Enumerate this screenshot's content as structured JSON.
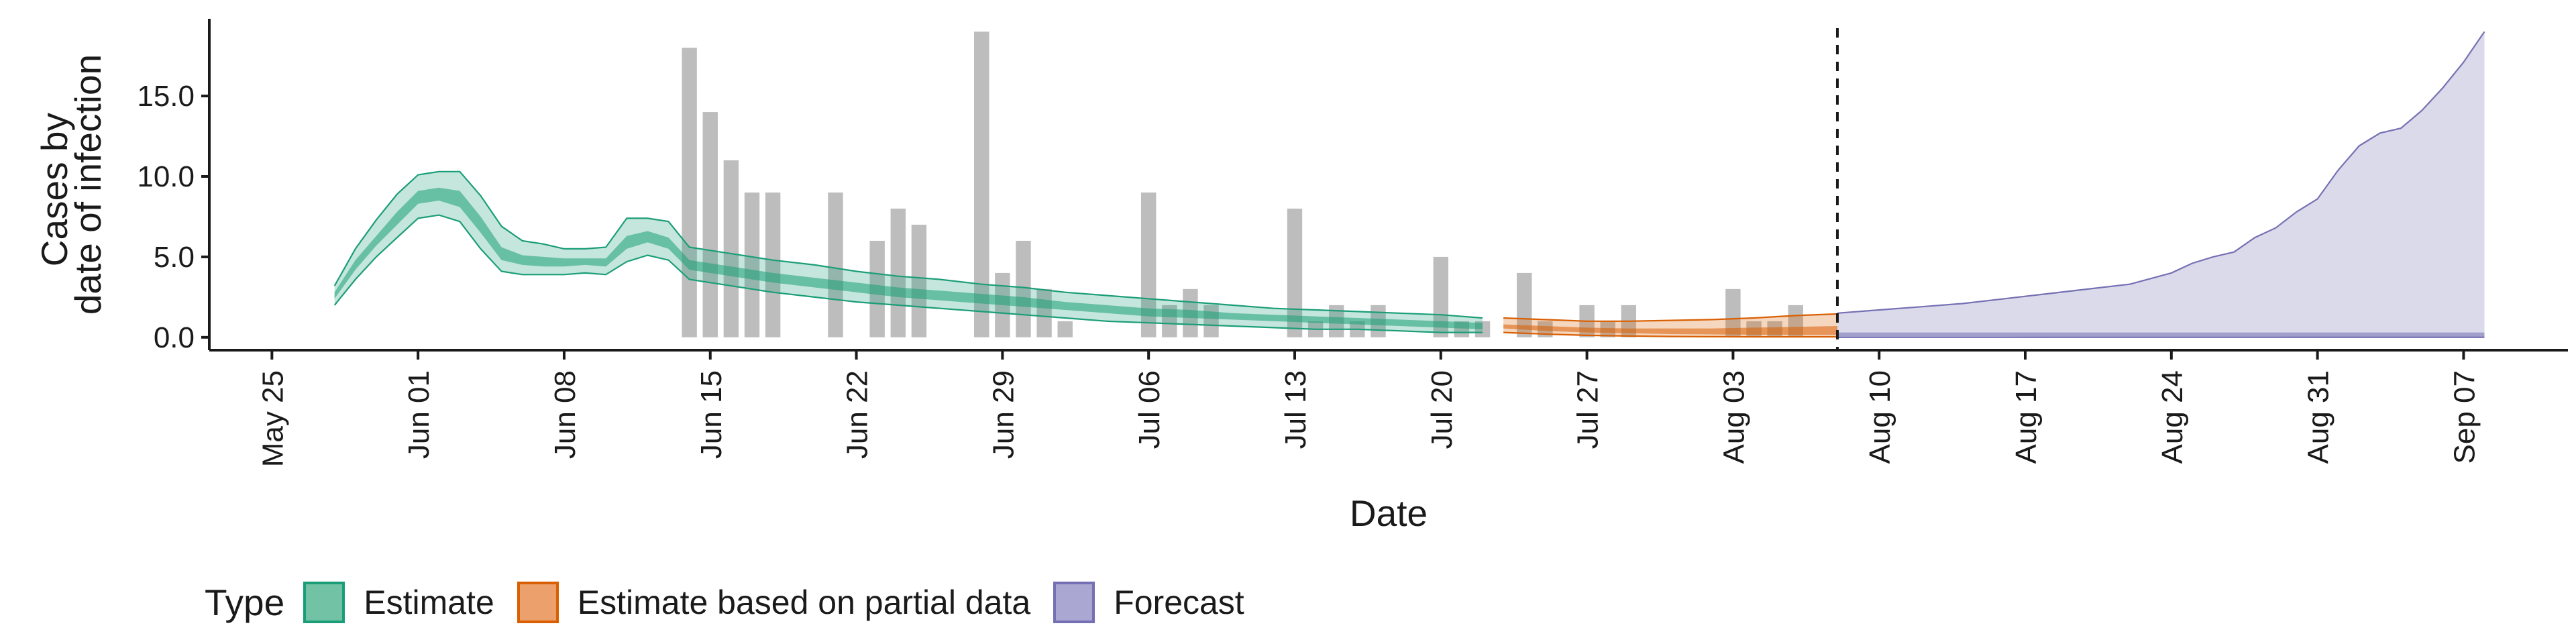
{
  "chart_data": {
    "type": "area",
    "xlabel": "Date",
    "ylabel_lines": [
      "Cases by",
      "date of infection"
    ],
    "ylim": [
      -0.8,
      19.8
    ],
    "yticks": [
      0.0,
      5.0,
      10.0,
      15.0
    ],
    "ytick_labels": [
      "0.0",
      "5.0",
      "10.0",
      "15.0"
    ],
    "xlim": [
      "2020-05-22",
      "2020-09-12"
    ],
    "xticks": [
      "2020-05-25",
      "2020-06-01",
      "2020-06-08",
      "2020-06-15",
      "2020-06-22",
      "2020-06-29",
      "2020-07-06",
      "2020-07-13",
      "2020-07-20",
      "2020-07-27",
      "2020-08-03",
      "2020-08-10",
      "2020-08-17",
      "2020-08-24",
      "2020-08-31",
      "2020-09-07"
    ],
    "xtick_labels": [
      "May 25",
      "Jun 01",
      "Jun 08",
      "Jun 15",
      "Jun 22",
      "Jun 29",
      "Jul 06",
      "Jul 13",
      "Jul 20",
      "Jul 27",
      "Aug 03",
      "Aug 10",
      "Aug 17",
      "Aug 24",
      "Aug 31",
      "Sep 07"
    ],
    "forecast_start": "2020-08-08",
    "legend": {
      "title": "Type",
      "position": "bottom",
      "items": [
        {
          "label": "Estimate",
          "fill": "#72c3a6",
          "stroke": "#1b9e77"
        },
        {
          "label": "Estimate based on partial data",
          "fill": "#eca06b",
          "stroke": "#d95f02"
        },
        {
          "label": "Forecast",
          "fill": "#aaa7d2",
          "stroke": "#7570b3"
        }
      ]
    },
    "colors": {
      "estimate": "#1b9e77",
      "partial": "#d95f02",
      "forecast": "#7570b3",
      "bars": "#bdbdbd",
      "cutoff_line": "#1a1a1a"
    },
    "bars": {
      "x": [
        "2020-06-14",
        "2020-06-15",
        "2020-06-16",
        "2020-06-17",
        "2020-06-18",
        "2020-06-21",
        "2020-06-23",
        "2020-06-24",
        "2020-06-25",
        "2020-06-28",
        "2020-06-29",
        "2020-06-30",
        "2020-07-01",
        "2020-07-02",
        "2020-07-06",
        "2020-07-07",
        "2020-07-08",
        "2020-07-09",
        "2020-07-13",
        "2020-07-14",
        "2020-07-15",
        "2020-07-16",
        "2020-07-17",
        "2020-07-20",
        "2020-07-21",
        "2020-07-22",
        "2020-07-24",
        "2020-07-25",
        "2020-07-27",
        "2020-07-28",
        "2020-07-29",
        "2020-08-03",
        "2020-08-04",
        "2020-08-05",
        "2020-08-06"
      ],
      "values": [
        18,
        14,
        11,
        9,
        9,
        9,
        6,
        8,
        7,
        19,
        4,
        6,
        3,
        1,
        9,
        2,
        3,
        2,
        8,
        1,
        2,
        1,
        2,
        5,
        1,
        1,
        4,
        1,
        2,
        1,
        2,
        3,
        1,
        1,
        2
      ]
    },
    "series": [
      {
        "type": "estimate",
        "x": [
          "2020-05-28",
          "2020-05-29",
          "2020-05-30",
          "2020-05-31",
          "2020-06-01",
          "2020-06-02",
          "2020-06-03",
          "2020-06-04",
          "2020-06-05",
          "2020-06-06",
          "2020-06-07",
          "2020-06-08",
          "2020-06-09",
          "2020-06-10",
          "2020-06-11",
          "2020-06-12",
          "2020-06-13",
          "2020-06-14",
          "2020-06-16",
          "2020-06-18",
          "2020-06-20",
          "2020-06-22",
          "2020-06-24",
          "2020-06-26",
          "2020-06-28",
          "2020-06-30",
          "2020-07-02",
          "2020-07-04",
          "2020-07-06",
          "2020-07-08",
          "2020-07-10",
          "2020-07-12",
          "2020-07-14",
          "2020-07-16",
          "2020-07-18",
          "2020-07-20",
          "2020-07-22"
        ],
        "upper90": [
          3.2,
          5.5,
          7.3,
          8.9,
          10.1,
          10.3,
          10.3,
          8.8,
          6.9,
          6.0,
          5.8,
          5.5,
          5.5,
          5.6,
          7.4,
          7.4,
          7.2,
          5.6,
          5.2,
          4.8,
          4.5,
          4.1,
          3.8,
          3.6,
          3.3,
          3.1,
          2.8,
          2.6,
          2.4,
          2.2,
          2.0,
          1.8,
          1.7,
          1.6,
          1.5,
          1.4,
          1.2
        ],
        "upper50": [
          2.8,
          4.8,
          6.3,
          7.8,
          9.1,
          9.3,
          9.1,
          7.5,
          5.6,
          5.1,
          5.0,
          4.9,
          4.9,
          4.9,
          6.3,
          6.6,
          6.2,
          4.8,
          4.4,
          4.0,
          3.7,
          3.4,
          3.1,
          2.9,
          2.7,
          2.5,
          2.2,
          2.0,
          1.8,
          1.7,
          1.5,
          1.4,
          1.3,
          1.2,
          1.1,
          1.0,
          0.9
        ],
        "median": [
          2.6,
          4.5,
          6.0,
          7.4,
          8.7,
          8.9,
          8.6,
          7.0,
          5.2,
          4.8,
          4.7,
          4.7,
          4.7,
          4.7,
          5.9,
          6.3,
          5.9,
          4.5,
          4.1,
          3.7,
          3.4,
          3.1,
          2.8,
          2.6,
          2.4,
          2.2,
          1.9,
          1.7,
          1.5,
          1.4,
          1.3,
          1.2,
          1.1,
          1.0,
          0.9,
          0.8,
          0.7
        ],
        "lower50": [
          2.4,
          4.2,
          5.7,
          7.0,
          8.3,
          8.5,
          8.1,
          6.5,
          4.8,
          4.5,
          4.4,
          4.4,
          4.5,
          4.4,
          5.5,
          5.9,
          5.5,
          4.2,
          3.8,
          3.4,
          3.1,
          2.8,
          2.5,
          2.3,
          2.1,
          1.9,
          1.7,
          1.5,
          1.3,
          1.2,
          1.1,
          1.0,
          0.9,
          0.8,
          0.7,
          0.6,
          0.5
        ],
        "lower90": [
          2.0,
          3.6,
          5.0,
          6.2,
          7.4,
          7.6,
          7.2,
          5.5,
          4.1,
          3.9,
          3.9,
          3.9,
          4.0,
          3.9,
          4.7,
          5.1,
          4.8,
          3.6,
          3.2,
          2.8,
          2.5,
          2.2,
          2.0,
          1.8,
          1.6,
          1.4,
          1.2,
          1.0,
          0.9,
          0.8,
          0.7,
          0.6,
          0.5,
          0.5,
          0.4,
          0.3,
          0.3
        ]
      },
      {
        "type": "partial",
        "x": [
          "2020-07-23",
          "2020-07-25",
          "2020-07-27",
          "2020-07-29",
          "2020-07-31",
          "2020-08-02",
          "2020-08-04",
          "2020-08-06",
          "2020-08-08"
        ],
        "upper90": [
          1.2,
          1.1,
          1.0,
          1.0,
          1.05,
          1.1,
          1.2,
          1.35,
          1.45
        ],
        "upper50": [
          0.8,
          0.7,
          0.6,
          0.55,
          0.55,
          0.55,
          0.6,
          0.65,
          0.7
        ],
        "median": [
          0.7,
          0.55,
          0.45,
          0.4,
          0.35,
          0.35,
          0.35,
          0.35,
          0.35
        ],
        "lower50": [
          0.55,
          0.4,
          0.3,
          0.25,
          0.2,
          0.18,
          0.16,
          0.15,
          0.15
        ],
        "lower90": [
          0.3,
          0.2,
          0.12,
          0.08,
          0.05,
          0.04,
          0.03,
          0.03,
          0.03
        ]
      },
      {
        "type": "forecast",
        "x": [
          "2020-08-08",
          "2020-08-10",
          "2020-08-12",
          "2020-08-14",
          "2020-08-16",
          "2020-08-18",
          "2020-08-20",
          "2020-08-22",
          "2020-08-24",
          "2020-08-25",
          "2020-08-26",
          "2020-08-27",
          "2020-08-28",
          "2020-08-29",
          "2020-08-30",
          "2020-08-31",
          "2020-09-01",
          "2020-09-02",
          "2020-09-03",
          "2020-09-04",
          "2020-09-05",
          "2020-09-06",
          "2020-09-07",
          "2020-09-08"
        ],
        "upper90": [
          1.5,
          1.7,
          1.9,
          2.1,
          2.4,
          2.7,
          3.0,
          3.3,
          4.0,
          4.6,
          5.0,
          5.3,
          6.2,
          6.8,
          7.8,
          8.6,
          10.4,
          11.9,
          12.7,
          13.0,
          14.1,
          15.5,
          17.1,
          19.0
        ],
        "upper50": [
          0.3,
          0.3,
          0.3,
          0.3,
          0.3,
          0.3,
          0.3,
          0.3,
          0.3,
          0.3,
          0.3,
          0.3,
          0.3,
          0.3,
          0.3,
          0.3,
          0.3,
          0.3,
          0.3,
          0.3,
          0.3,
          0.3,
          0.3,
          0.3
        ],
        "median": [
          0.15,
          0.15,
          0.14,
          0.14,
          0.13,
          0.13,
          0.12,
          0.12,
          0.12,
          0.11,
          0.11,
          0.11,
          0.11,
          0.1,
          0.1,
          0.1,
          0.1,
          0.1,
          0.1,
          0.1,
          0.1,
          0.1,
          0.1,
          0.1
        ],
        "lower50": [
          0.05,
          0.05,
          0.05,
          0.05,
          0.05,
          0.04,
          0.04,
          0.04,
          0.04,
          0.04,
          0.04,
          0.04,
          0.04,
          0.04,
          0.03,
          0.03,
          0.03,
          0.03,
          0.03,
          0.03,
          0.03,
          0.03,
          0.03,
          0.03
        ],
        "lower90": [
          0.0,
          0.0,
          0.0,
          0.0,
          0.0,
          0.0,
          0.0,
          0.0,
          0.0,
          0.0,
          0.0,
          0.0,
          0.0,
          0.0,
          0.0,
          0.0,
          0.0,
          0.0,
          0.0,
          0.0,
          0.0,
          0.0,
          0.0,
          0.0
        ]
      }
    ]
  }
}
